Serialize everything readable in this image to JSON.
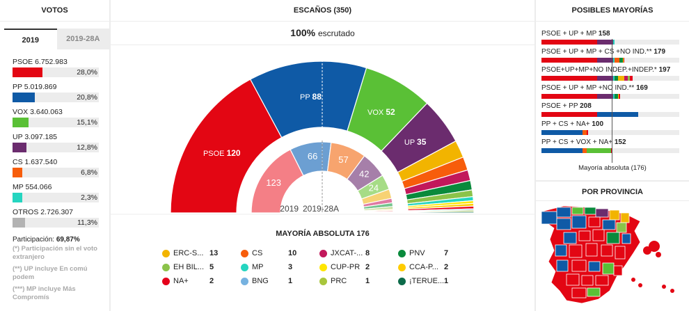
{
  "votos": {
    "title": "VOTOS",
    "tabs": [
      {
        "label": "2019",
        "active": true
      },
      {
        "label": "2019-28A",
        "active": false
      }
    ],
    "parties": [
      {
        "label": "PSOE 6.752.983",
        "pct": "28,0%",
        "value": 28.0,
        "color": "#e30613"
      },
      {
        "label": "PP 5.019.869",
        "pct": "20,8%",
        "value": 20.8,
        "color": "#0f5aa6"
      },
      {
        "label": "VOX 3.640.063",
        "pct": "15,1%",
        "value": 15.1,
        "color": "#5ac036"
      },
      {
        "label": "UP 3.097.185",
        "pct": "12,8%",
        "value": 12.8,
        "color": "#6b2c6e"
      },
      {
        "label": "CS 1.637.540",
        "pct": "6,8%",
        "value": 6.8,
        "color": "#f75d0b"
      },
      {
        "label": "MP 554.066",
        "pct": "2,3%",
        "value": 2.3,
        "color": "#25d5c0"
      },
      {
        "label": "OTROS 2.726.307",
        "pct": "11,3%",
        "value": 11.3,
        "color": "#b3b3b3"
      }
    ],
    "participation_label": "Participación: ",
    "participation_value": "69,87%",
    "notes": [
      "(*) Participación sin el voto extranjero",
      "(**) UP incluye En comú podem",
      "(***) MP incluye Más Compromís"
    ]
  },
  "escanos": {
    "title": "ESCAÑOS (350)",
    "scrutiny_value": "100%",
    "scrutiny_text": "escrutado",
    "label_current": "2019",
    "label_previous": "2019-28A",
    "majority_label": "MAYORÍA ABSOLUTA 176"
  },
  "chart_data": {
    "type": "pie",
    "title": "ESCAÑOS (350)",
    "series": [
      {
        "name": "2019",
        "values": [
          {
            "party": "PSOE",
            "seats": 120,
            "color": "#e30613"
          },
          {
            "party": "PP",
            "seats": 88,
            "color": "#0f5aa6"
          },
          {
            "party": "VOX",
            "seats": 52,
            "color": "#5ac036"
          },
          {
            "party": "UP",
            "seats": 35,
            "color": "#6b2c6e"
          },
          {
            "party": "ERC-S...",
            "seats": 13,
            "color": "#f2b400"
          },
          {
            "party": "CS",
            "seats": 10,
            "color": "#f75d0b"
          },
          {
            "party": "JXCAT-...",
            "seats": 8,
            "color": "#c2185b"
          },
          {
            "party": "PNV",
            "seats": 7,
            "color": "#0a8a3c"
          },
          {
            "party": "EH BIL...",
            "seats": 5,
            "color": "#8bc34a"
          },
          {
            "party": "MP",
            "seats": 3,
            "color": "#25d5c0"
          },
          {
            "party": "CUP-PR",
            "seats": 2,
            "color": "#ffe600"
          },
          {
            "party": "CCA-P...",
            "seats": 2,
            "color": "#ffcc00"
          },
          {
            "party": "NA+",
            "seats": 2,
            "color": "#e5001a"
          },
          {
            "party": "BNG",
            "seats": 1,
            "color": "#76b2e0"
          },
          {
            "party": "PRC",
            "seats": 1,
            "color": "#a8c63c"
          },
          {
            "party": "¡TERUE...",
            "seats": 1,
            "color": "#0d6b4a"
          }
        ]
      },
      {
        "name": "2019-28A",
        "values": [
          {
            "party": "PSOE",
            "seats": 123,
            "color": "#f47f86"
          },
          {
            "party": "PP",
            "seats": 66,
            "color": "#6c9fd2"
          },
          {
            "party": "CS",
            "seats": 57,
            "color": "#f7a46e"
          },
          {
            "party": "UP",
            "seats": 42,
            "color": "#a67fa9"
          },
          {
            "party": "VOX",
            "seats": 24,
            "color": "#a6dc86"
          },
          {
            "party": "ERC-S...",
            "seats": 15,
            "color": "#f7d274"
          },
          {
            "party": "JXCAT-...",
            "seats": 7,
            "color": "#e07aa3"
          },
          {
            "party": "PNV",
            "seats": 6,
            "color": "#74c48e"
          },
          {
            "party": "EH BIL...",
            "seats": 4,
            "color": "#c3dc93"
          },
          {
            "party": "CCA-P...",
            "seats": 2,
            "color": "#ffe080"
          },
          {
            "party": "NA+",
            "seats": 2,
            "color": "#f27f85"
          },
          {
            "party": "PRC",
            "seats": 1,
            "color": "#cbdc99"
          },
          {
            "party": "MP",
            "seats": 1,
            "color": "#8ce6da"
          }
        ]
      }
    ],
    "inner_visible_labels": [
      "123",
      "66",
      "57",
      "42",
      "24"
    ]
  },
  "legend": [
    {
      "name": "ERC-S...",
      "value": "13",
      "color": "#f2b400"
    },
    {
      "name": "CS",
      "value": "10",
      "color": "#f75d0b"
    },
    {
      "name": "JXCAT-...",
      "value": "8",
      "color": "#c2185b"
    },
    {
      "name": "PNV",
      "value": "7",
      "color": "#0a8a3c"
    },
    {
      "name": "EH BIL...",
      "value": "5",
      "color": "#8bc34a"
    },
    {
      "name": "MP",
      "value": "3",
      "color": "#25d5c0"
    },
    {
      "name": "CUP-PR",
      "value": "2",
      "color": "#ffe600"
    },
    {
      "name": "CCA-P...",
      "value": "2",
      "color": "#ffcc00"
    },
    {
      "name": "NA+",
      "value": "2",
      "color": "#e5001a"
    },
    {
      "name": "BNG",
      "value": "1",
      "color": "#76b2e0"
    },
    {
      "name": "PRC",
      "value": "1",
      "color": "#a8c63c"
    },
    {
      "name": "¡TERUE...",
      "value": "1",
      "color": "#0d6b4a"
    }
  ],
  "mayorias": {
    "title": "POSIBLES MAYORÍAS",
    "rows": [
      {
        "text": "PSOE + UP + MP ",
        "total": "158",
        "segments": [
          {
            "seats": 120,
            "color": "#e30613"
          },
          {
            "seats": 35,
            "color": "#6b2c6e"
          },
          {
            "seats": 3,
            "color": "#25d5c0"
          }
        ]
      },
      {
        "text": "PSOE + UP + MP + CS +NO IND.** ",
        "total": "179",
        "segments": [
          {
            "seats": 120,
            "color": "#e30613"
          },
          {
            "seats": 35,
            "color": "#6b2c6e"
          },
          {
            "seats": 3,
            "color": "#25d5c0"
          },
          {
            "seats": 10,
            "color": "#f75d0b"
          },
          {
            "seats": 7,
            "color": "#0a8a3c"
          },
          {
            "seats": 2,
            "color": "#ffcc00"
          },
          {
            "seats": 2,
            "color": "#e5001a"
          }
        ]
      },
      {
        "text": "PSOE+UP+MP+NO INDEP.+INDEP.* ",
        "total": "197",
        "segments": [
          {
            "seats": 120,
            "color": "#e30613"
          },
          {
            "seats": 35,
            "color": "#6b2c6e"
          },
          {
            "seats": 3,
            "color": "#25d5c0"
          },
          {
            "seats": 7,
            "color": "#0a8a3c"
          },
          {
            "seats": 13,
            "color": "#f2b400"
          },
          {
            "seats": 8,
            "color": "#c2185b"
          },
          {
            "seats": 5,
            "color": "#8bc34a"
          },
          {
            "seats": 6,
            "color": "#e5001a"
          }
        ]
      },
      {
        "text": "PSOE + UP + MP +NO IND.** ",
        "total": "169",
        "segments": [
          {
            "seats": 120,
            "color": "#e30613"
          },
          {
            "seats": 35,
            "color": "#6b2c6e"
          },
          {
            "seats": 3,
            "color": "#25d5c0"
          },
          {
            "seats": 7,
            "color": "#0a8a3c"
          },
          {
            "seats": 2,
            "color": "#ffcc00"
          },
          {
            "seats": 2,
            "color": "#e5001a"
          }
        ]
      },
      {
        "text": "PSOE + PP ",
        "total": "208",
        "segments": [
          {
            "seats": 120,
            "color": "#e30613"
          },
          {
            "seats": 88,
            "color": "#0f5aa6"
          }
        ]
      },
      {
        "text": "PP + CS + NA+ ",
        "total": "100",
        "segments": [
          {
            "seats": 88,
            "color": "#0f5aa6"
          },
          {
            "seats": 10,
            "color": "#f75d0b"
          },
          {
            "seats": 2,
            "color": "#e5001a"
          }
        ]
      },
      {
        "text": "PP + CS + VOX + NA+ ",
        "total": "152",
        "segments": [
          {
            "seats": 88,
            "color": "#0f5aa6"
          },
          {
            "seats": 10,
            "color": "#f75d0b"
          },
          {
            "seats": 52,
            "color": "#5ac036"
          },
          {
            "seats": 2,
            "color": "#e5001a"
          }
        ]
      }
    ],
    "scale_max": 350,
    "absolute": 176,
    "absolute_label": "Mayoría absoluta (176)"
  },
  "provincia": {
    "title": "POR PROVINCIA"
  }
}
